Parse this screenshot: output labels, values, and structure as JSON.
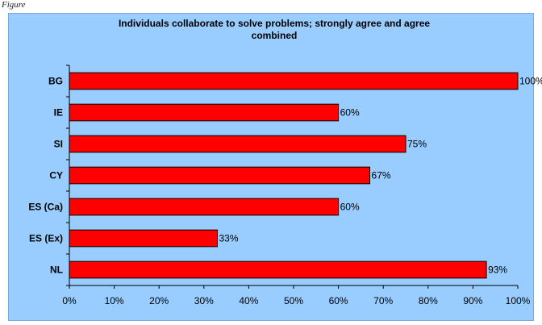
{
  "figure_label": "Figure",
  "chart_data": {
    "type": "bar",
    "orientation": "horizontal",
    "title": "Individuals collaborate to solve problems; strongly agree and agree combined",
    "title_lines": [
      "Individuals collaborate to solve problems; strongly agree and agree",
      "combined"
    ],
    "categories": [
      "BG",
      "IE",
      "SI",
      "CY",
      "ES (Ca)",
      "ES (Ex)",
      "NL"
    ],
    "values": [
      100,
      60,
      75,
      67,
      60,
      33,
      93
    ],
    "data_labels": [
      "100%",
      "60%",
      "75%",
      "67%",
      "60%",
      "33%",
      "93%"
    ],
    "xlim": [
      0,
      100
    ],
    "x_ticks": [
      0,
      10,
      20,
      30,
      40,
      50,
      60,
      70,
      80,
      90,
      100
    ],
    "x_tick_labels": [
      "0%",
      "10%",
      "20%",
      "30%",
      "40%",
      "50%",
      "60%",
      "70%",
      "80%",
      "90%",
      "100%"
    ],
    "xlabel": "",
    "ylabel": "",
    "grid": false,
    "legend": false,
    "colors": {
      "bar": "#ff0000",
      "bar_edge": "#000000",
      "background": "#99ccff",
      "plot_area": "#99ccff"
    }
  }
}
